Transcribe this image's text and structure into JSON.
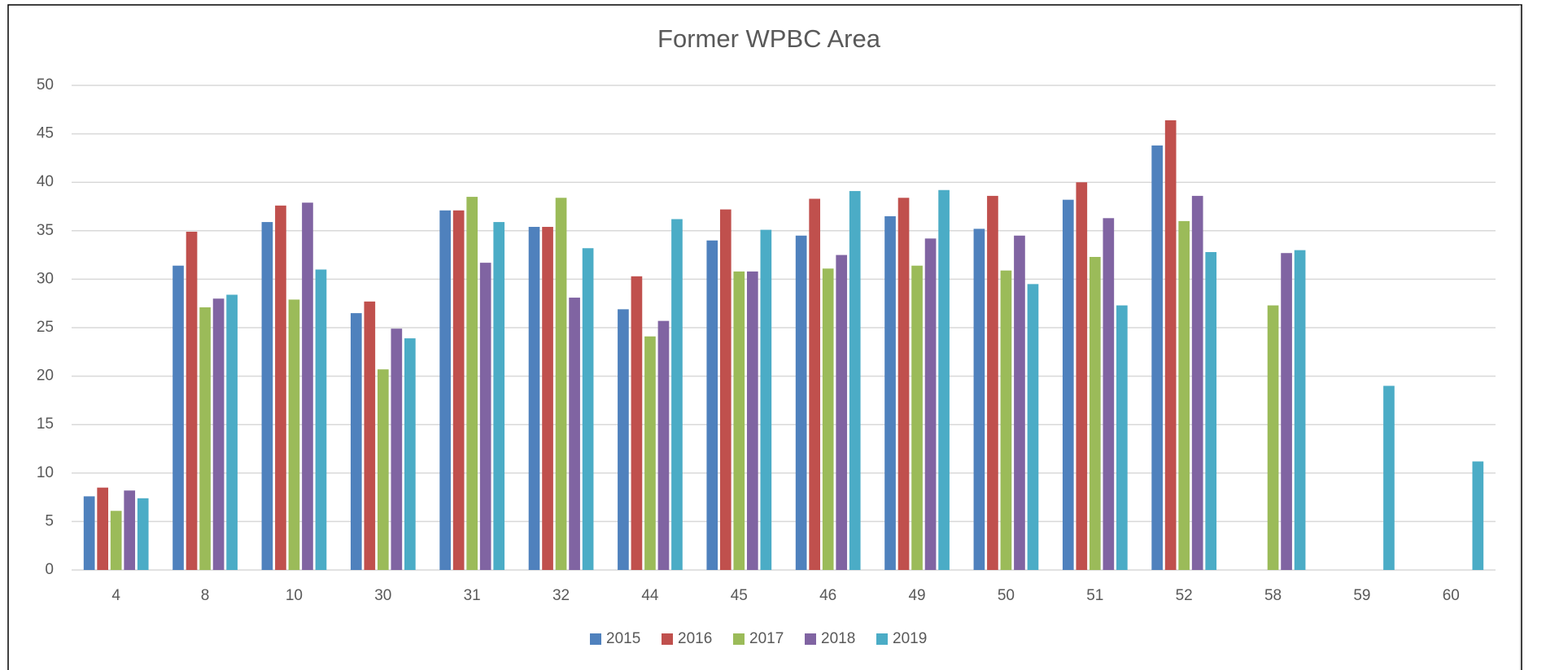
{
  "chart_data": {
    "type": "bar",
    "title": "Former WPBC Area",
    "categories": [
      "4",
      "8",
      "10",
      "30",
      "31",
      "32",
      "44",
      "45",
      "46",
      "49",
      "50",
      "51",
      "52",
      "58",
      "59",
      "60"
    ],
    "series": [
      {
        "name": "2015",
        "color": "#4f81bd",
        "values": [
          7.6,
          31.4,
          35.9,
          26.5,
          37.1,
          35.4,
          26.9,
          34.0,
          34.5,
          36.5,
          35.2,
          38.2,
          43.8,
          null,
          null,
          null
        ]
      },
      {
        "name": "2016",
        "color": "#c0504d",
        "values": [
          8.5,
          34.9,
          37.6,
          27.7,
          37.1,
          35.4,
          30.3,
          37.2,
          38.3,
          38.4,
          38.6,
          40.0,
          46.4,
          null,
          null,
          null
        ]
      },
      {
        "name": "2017",
        "color": "#9bbb59",
        "values": [
          6.1,
          27.1,
          27.9,
          20.7,
          38.5,
          38.4,
          24.1,
          30.8,
          31.1,
          31.4,
          30.9,
          32.3,
          36.0,
          27.3,
          null,
          null
        ]
      },
      {
        "name": "2018",
        "color": "#8064a2",
        "values": [
          8.2,
          28.0,
          37.9,
          24.9,
          31.7,
          28.1,
          25.7,
          30.8,
          32.5,
          34.2,
          34.5,
          36.3,
          38.6,
          32.7,
          null,
          null
        ]
      },
      {
        "name": "2019",
        "color": "#4bacc6",
        "values": [
          7.4,
          28.4,
          31.0,
          23.9,
          35.9,
          33.2,
          36.2,
          35.1,
          39.1,
          39.2,
          29.5,
          27.3,
          32.8,
          33.0,
          19.0,
          11.2
        ]
      }
    ],
    "ylim": [
      0,
      50
    ],
    "yticks": [
      0,
      5,
      10,
      15,
      20,
      25,
      30,
      35,
      40,
      45,
      50
    ],
    "grid": true,
    "legend": "bottom"
  }
}
